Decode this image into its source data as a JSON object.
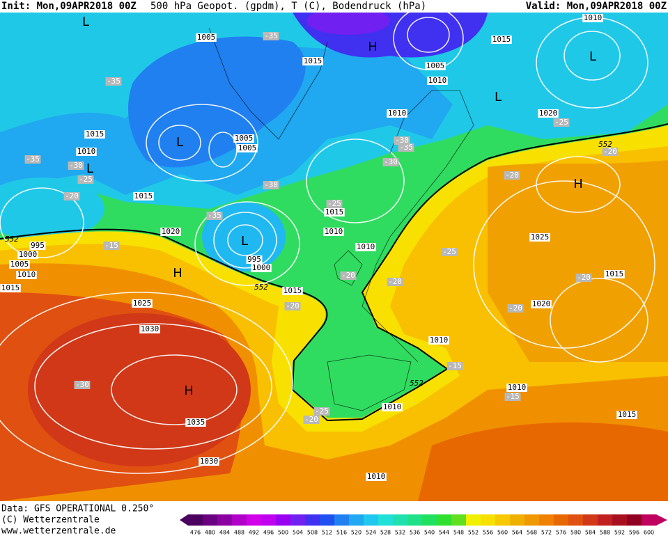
{
  "header": {
    "init": "Init: Mon,09APR2018 00Z",
    "title": "500 hPa Geopot. (gpdm), T (C), Bodendruck (hPa)",
    "valid": "Valid: Mon,09APR2018 00Z"
  },
  "map": {
    "pressure_labels": [
      "1005",
      "1015",
      "1005",
      "1010",
      "1015",
      "1010",
      "1020",
      "1010",
      "1015",
      "1010",
      "1005",
      "1005",
      "1015",
      "1015",
      "1020",
      "1010",
      "1010",
      "995",
      "1000",
      "995",
      "1000",
      "1005",
      "1010",
      "1015",
      "1015",
      "1025",
      "1030",
      "1025",
      "1015",
      "1020",
      "1010",
      "1010",
      "1015",
      "1010",
      "1035",
      "1030",
      "1010"
    ],
    "height_labels": [
      "552",
      "552",
      "552",
      "552"
    ],
    "temperature_labels": [
      "-35",
      "-35",
      "-35",
      "-30",
      "-25",
      "-20",
      "-15",
      "-35",
      "-30",
      "-25",
      "-30",
      "-35",
      "-30",
      "-25",
      "-20",
      "-20",
      "-25",
      "-20",
      "-20",
      "-20",
      "-20",
      "-20",
      "-15",
      "-15",
      "-30",
      "-25",
      "-20"
    ],
    "centers": [
      "L",
      "H",
      "L",
      "L",
      "L",
      "L",
      "L",
      "H",
      "H",
      "H"
    ]
  },
  "footer": {
    "data": "Data: GFS OPERATIONAL 0.250°",
    "copyright": "(C) Wetterzentrale",
    "url": "www.wetterzentrale.de"
  },
  "colorbar": {
    "values": [
      "476",
      "480",
      "484",
      "488",
      "492",
      "496",
      "500",
      "504",
      "508",
      "512",
      "516",
      "520",
      "524",
      "528",
      "532",
      "536",
      "540",
      "544",
      "548",
      "552",
      "556",
      "560",
      "564",
      "568",
      "572",
      "576",
      "580",
      "584",
      "588",
      "592",
      "596",
      "600"
    ]
  }
}
